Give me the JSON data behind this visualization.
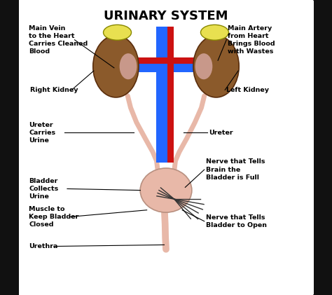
{
  "title": "URINARY SYSTEM",
  "bg_color": "#ffffff",
  "border_color": "#111111",
  "kidney_color": "#8B5A2B",
  "adrenal_color": "#e8e050",
  "vein_color": "#2266ff",
  "artery_color": "#cc1111",
  "ureter_color": "#e8b8a8",
  "bladder_color": "#e8b8a8",
  "nerve_color": "#333333",
  "label_color": "#000000",
  "annotations": {
    "main_vein": "Main Vein\nto the Heart\nCarries Cleaned\nBlood",
    "main_artery": "Main Artery\nfrom Heart\nBrings Blood\nwith Wastes",
    "right_kidney": "Right Kidney",
    "left_kidney": "Left Kidney",
    "ureter_left": "Ureter\nCarries\nUrine",
    "ureter_right": "Ureter",
    "bladder": "Bladder\nCollects\nUrine",
    "muscle": "Muscle to\nKeep Bladder\nClosed",
    "urethra": "Urethra",
    "nerve_full": "Nerve that Tells\nBrain the\nBladder is Full",
    "nerve_open": "Nerve that Tells\nBladder to Open"
  }
}
